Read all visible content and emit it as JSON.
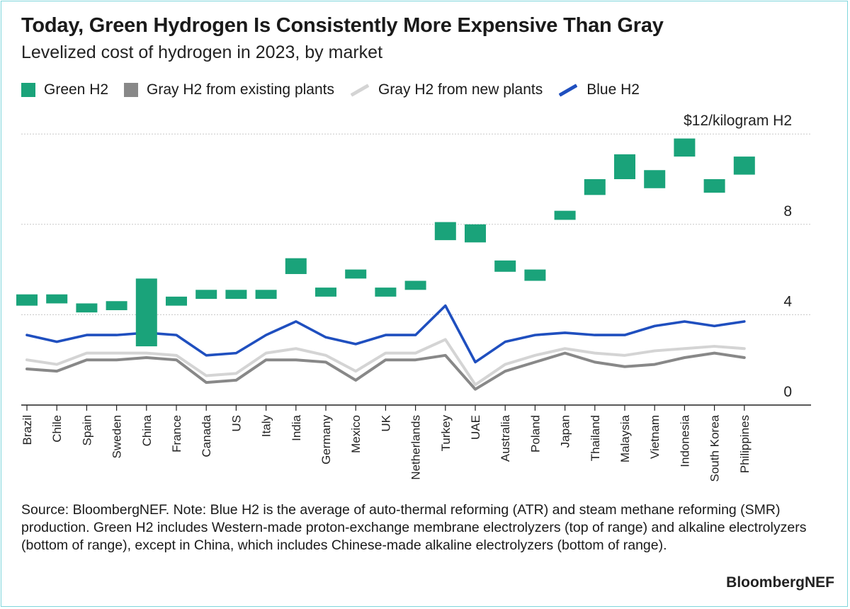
{
  "header": {
    "title": "Today, Green Hydrogen Is Consistently More Expensive Than Gray",
    "subtitle": "Levelized cost of hydrogen in 2023, by market"
  },
  "legend": [
    {
      "label": "Green H2",
      "kind": "box",
      "color": "#1aa37a"
    },
    {
      "label": "Gray H2 from existing plants",
      "kind": "box",
      "color": "#888888"
    },
    {
      "label": "Gray H2 from new plants",
      "kind": "line",
      "color": "#d4d4d4"
    },
    {
      "label": "Blue H2",
      "kind": "line",
      "color": "#1f4fbf"
    }
  ],
  "footer": {
    "source": "Source: BloombergNEF. Note: Blue H2 is the average of auto-thermal reforming (ATR) and steam methane reforming (SMR) production. Green H2 includes Western-made proton-exchange membrane electrolyzers (top of range) and alkaline electrolyzers (bottom of range), except in China, which includes Chinese-made alkaline electrolyzers (bottom of range).",
    "brand": "BloombergNEF"
  },
  "chart_data": {
    "type": "line",
    "y_unit_label": "$12/kilogram H2",
    "ylim": [
      0,
      12
    ],
    "yticks": [
      {
        "value": 0,
        "label": "0"
      },
      {
        "value": 4,
        "label": "4"
      },
      {
        "value": 8,
        "label": "8"
      },
      {
        "value": 12,
        "label": "$12/kilogram H2"
      }
    ],
    "grid": true,
    "legend_position": "top-left",
    "categories": [
      "Brazil",
      "Chile",
      "Spain",
      "Sweden",
      "China",
      "France",
      "Canada",
      "US",
      "Italy",
      "India",
      "Germany",
      "Mexico",
      "UK",
      "Netherlands",
      "Turkey",
      "UAE",
      "Australia",
      "Poland",
      "Japan",
      "Thailand",
      "Malaysia",
      "Vietnam",
      "Indonesia",
      "South Korea",
      "Philippines"
    ],
    "green_h2": {
      "name": "Green H2",
      "color": "#1aa37a",
      "low": [
        4.4,
        4.5,
        4.1,
        4.2,
        2.6,
        4.4,
        4.7,
        4.7,
        4.7,
        5.8,
        4.8,
        5.6,
        4.8,
        5.1,
        7.3,
        7.2,
        5.9,
        5.5,
        8.2,
        9.3,
        10.0,
        9.6,
        11.0,
        9.4,
        10.2
      ],
      "high": [
        4.9,
        4.9,
        4.5,
        4.6,
        5.6,
        4.8,
        5.1,
        5.1,
        5.1,
        6.5,
        5.2,
        6.0,
        5.2,
        5.5,
        8.1,
        8.0,
        6.4,
        6.0,
        8.6,
        10.0,
        11.1,
        10.4,
        11.8,
        10.0,
        11.0
      ]
    },
    "series": [
      {
        "name": "Gray H2 from existing plants",
        "color": "#888888",
        "values": [
          1.6,
          1.5,
          2.0,
          2.0,
          2.1,
          2.0,
          1.0,
          1.1,
          2.0,
          2.0,
          1.9,
          1.1,
          2.0,
          2.0,
          2.2,
          0.7,
          1.5,
          1.9,
          2.3,
          1.9,
          1.7,
          1.8,
          2.1,
          2.3,
          2.1
        ]
      },
      {
        "name": "Gray H2 from new plants",
        "color": "#d4d4d4",
        "values": [
          2.0,
          1.8,
          2.3,
          2.3,
          2.3,
          2.2,
          1.3,
          1.4,
          2.3,
          2.5,
          2.2,
          1.5,
          2.3,
          2.3,
          2.9,
          0.9,
          1.8,
          2.2,
          2.5,
          2.3,
          2.2,
          2.4,
          2.5,
          2.6,
          2.5
        ]
      },
      {
        "name": "Blue H2",
        "color": "#1f4fbf",
        "values": [
          3.1,
          2.8,
          3.1,
          3.1,
          3.2,
          3.1,
          2.2,
          2.3,
          3.1,
          3.7,
          3.0,
          2.7,
          3.1,
          3.1,
          4.4,
          1.9,
          2.8,
          3.1,
          3.2,
          3.1,
          3.1,
          3.5,
          3.7,
          3.5,
          3.7
        ]
      }
    ]
  }
}
